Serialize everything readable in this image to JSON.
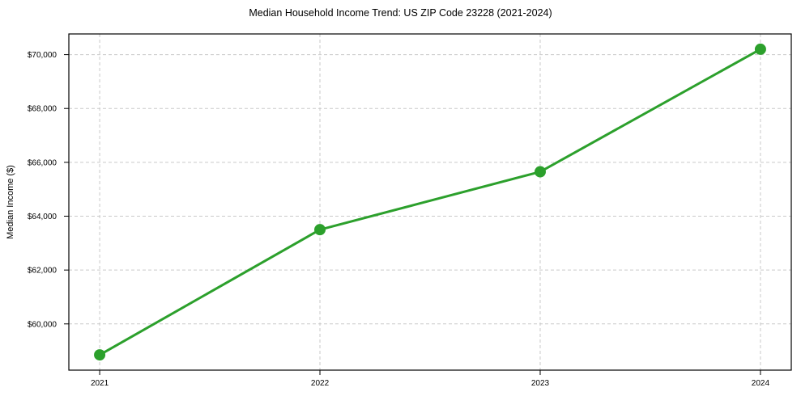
{
  "figure": {
    "title": "Median Household Income Trend: US ZIP Code 23228 (2021-2024)"
  },
  "chart_data": {
    "type": "line",
    "title": "Median Household Income Trend: US ZIP Code 23228 (2021-2024)",
    "xlabel": "",
    "ylabel": "Median Income ($)",
    "categories": [
      "2021",
      "2022",
      "2023",
      "2024"
    ],
    "x": [
      2021,
      2022,
      2023,
      2024
    ],
    "series": [
      {
        "name": "Median household income",
        "values": [
          58850,
          63500,
          65650,
          70200
        ]
      }
    ],
    "xlim": [
      2020.86,
      2024.14
    ],
    "ylim": [
      58283,
      70768
    ],
    "xticks": [
      2021,
      2022,
      2023,
      2024
    ],
    "xtick_labels": [
      "2021",
      "2022",
      "2023",
      "2024"
    ],
    "yticks": [
      60000,
      62000,
      64000,
      66000,
      68000,
      70000
    ],
    "ytick_labels": [
      "$60,000",
      "$62,000",
      "$64,000",
      "$66,000",
      "$68,000",
      "$70,000"
    ],
    "grid": true,
    "grid_style": "dashed",
    "legend": false,
    "style": {
      "line_color": "#2ca02c",
      "marker_color": "#2ca02c",
      "grid_color": "#c9c9c9",
      "axis_color": "#000000",
      "background": "#ffffff",
      "line_width": 3,
      "marker_radius": 7
    }
  }
}
